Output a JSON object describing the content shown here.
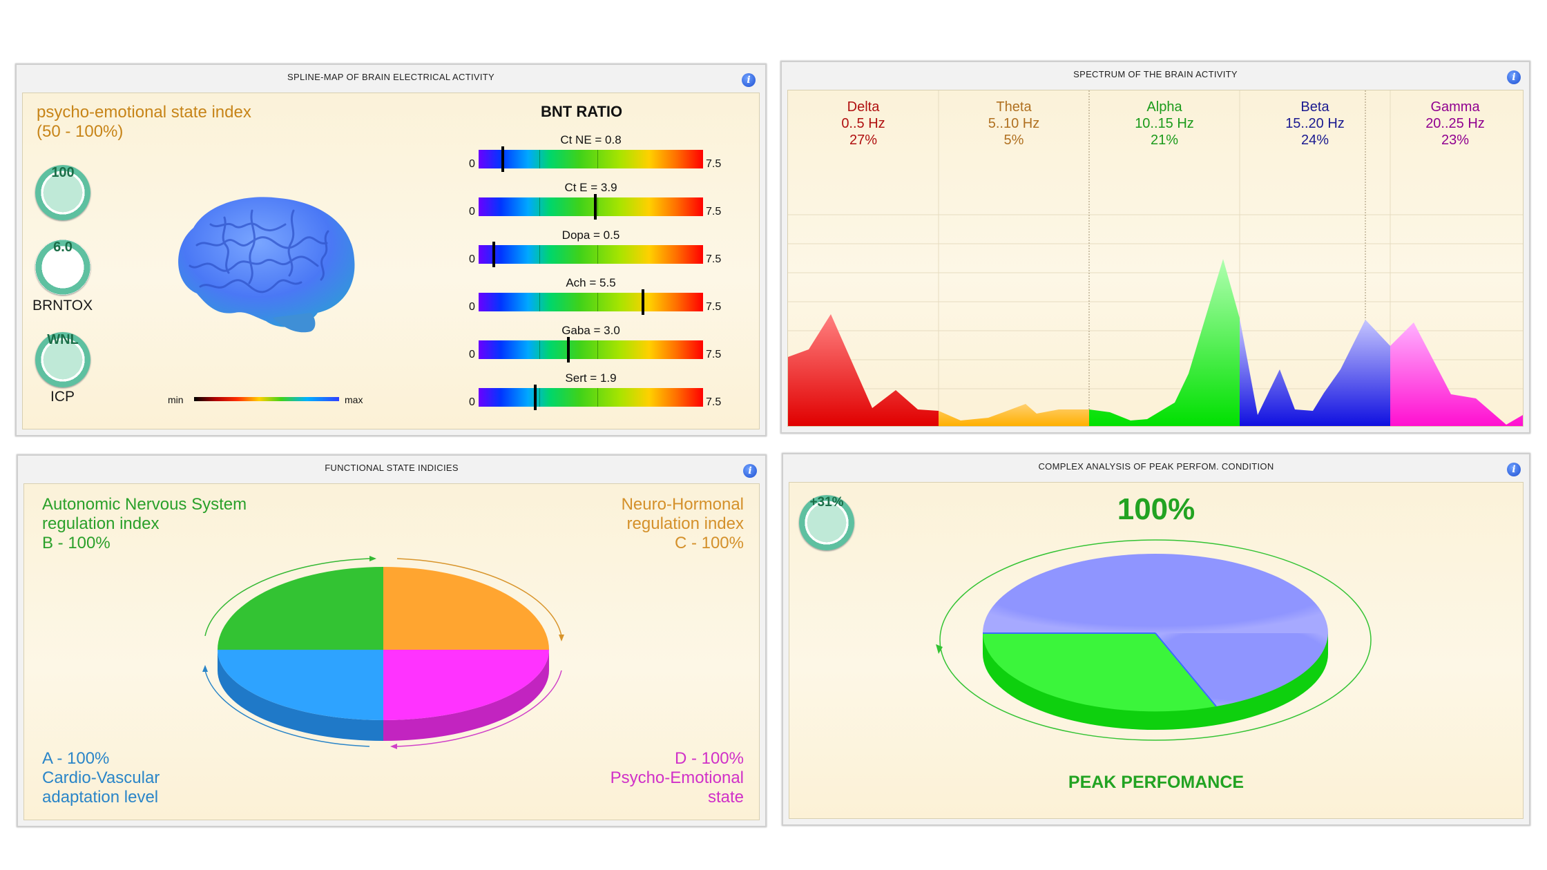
{
  "panels": {
    "spline": {
      "title": "SPLINE-MAP OF BRAIN ELECTRICAL ACTIVITY",
      "index_title_line1": "psycho-emotional state index",
      "index_title_line2": "(50 - 100%)",
      "circles": [
        {
          "value": "100",
          "label": ""
        },
        {
          "value": "6.0",
          "label": "BRNTOX"
        },
        {
          "value": "WNL",
          "label": "ICP"
        }
      ],
      "legend_min": "min",
      "legend_max": "max",
      "bnt_title": "BNT RATIO",
      "bnt": [
        {
          "label": "Ct NE = 0.8",
          "value": 0.8
        },
        {
          "label": "Ct E = 3.9",
          "value": 3.9
        },
        {
          "label": "Dopa = 0.5",
          "value": 0.5
        },
        {
          "label": "Ach = 5.5",
          "value": 5.5
        },
        {
          "label": "Gaba = 3.0",
          "value": 3.0
        },
        {
          "label": "Sert = 1.9",
          "value": 1.9
        }
      ],
      "scale_min": "0",
      "scale_max": "7.5"
    },
    "spectrum": {
      "title": "SPECTRUM OF THE BRAIN ACTIVITY",
      "bands": [
        {
          "name": "Delta",
          "range": "0..5 Hz",
          "pct": "27%",
          "color": "#b01010"
        },
        {
          "name": "Theta",
          "range": "5..10 Hz",
          "pct": "5%",
          "color": "#b07020"
        },
        {
          "name": "Alpha",
          "range": "10..15 Hz",
          "pct": "21%",
          "color": "#1a9a1a"
        },
        {
          "name": "Beta",
          "range": "15..20 Hz",
          "pct": "24%",
          "color": "#1a1a90"
        },
        {
          "name": "Gamma",
          "range": "20..25 Hz",
          "pct": "23%",
          "color": "#900090"
        }
      ]
    },
    "functional": {
      "title": "FUNCTIONAL STATE INDICIES",
      "tl": [
        "Autonomic Nervous System",
        "regulation index",
        "B - 100%"
      ],
      "tr": [
        "Neuro-Hormonal",
        "regulation index",
        "C - 100%"
      ],
      "bl": [
        "A - 100%",
        "Cardio-Vascular",
        "adaptation level"
      ],
      "br": [
        "D - 100%",
        "Psycho-Emotional",
        "state"
      ]
    },
    "complex": {
      "title": "COMPLEX ANALYSIS OF PEAK PERFOM. CONDITION",
      "badge": "+31%",
      "percent": "100%",
      "caption": "PEAK PERFOMANCE",
      "pie_green_fraction": 0.35
    }
  },
  "colors": {
    "green": "#33c333",
    "orange": "#ffa530",
    "blue": "#2ea3ff",
    "magenta": "#ff33ff",
    "lavender": "#8f95ff"
  }
}
